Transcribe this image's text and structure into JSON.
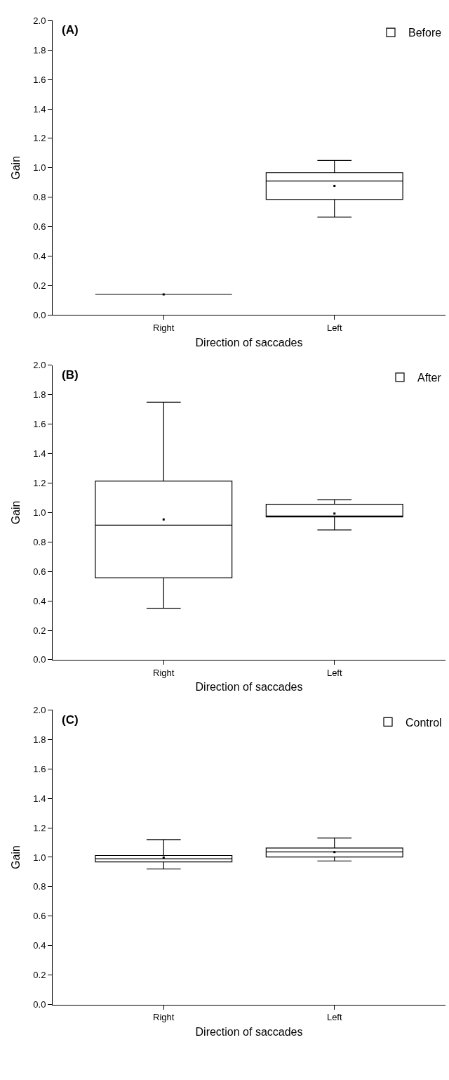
{
  "chart_data": [
    {
      "type": "box",
      "title": "(A)",
      "xlabel": "Direction of saccades",
      "ylabel": "Gain",
      "categories": [
        "Right",
        "Left"
      ],
      "ylim": [
        0,
        2
      ],
      "yticks": [
        {
          "value": 0,
          "label": "0.0"
        },
        0.2,
        0.4,
        0.6,
        0.8,
        {
          "value": 1,
          "label": "1.0"
        },
        1.2,
        1.4,
        1.6,
        1.8,
        {
          "value": 2,
          "label": "2.0"
        }
      ],
      "legend": "top right",
      "series": [
        {
          "name": "Before",
          "color": "#000000",
          "boxes": [
            {
              "low": 0.14,
              "q1": 0.14,
              "median": 0.14,
              "q3": 0.14,
              "high": 0.14,
              "mean": 0.14
            },
            {
              "low": 0.665,
              "q1": 0.785,
              "median": 0.91,
              "q3": 0.967,
              "high": 1.05,
              "mean": 0.877
            }
          ]
        }
      ]
    },
    {
      "type": "box",
      "title": "(B)",
      "xlabel": "Direction of saccades",
      "ylabel": "Gain",
      "categories": [
        "Right",
        "Left"
      ],
      "ylim": [
        0,
        2
      ],
      "yticks": [
        {
          "value": 0,
          "label": "0.0"
        },
        0.2,
        0.4,
        0.6,
        0.8,
        {
          "value": 1,
          "label": "1.0"
        },
        1.2,
        1.4,
        1.6,
        1.8,
        {
          "value": 2,
          "label": "2.0"
        }
      ],
      "legend": "top right",
      "series": [
        {
          "name": "After",
          "color": "#000000",
          "boxes": [
            {
              "low": 0.35,
              "q1": 0.556,
              "median": 0.914,
              "q3": 1.214,
              "high": 1.75,
              "mean": 0.953
            },
            {
              "low": 0.882,
              "q1": 0.97,
              "median": 0.976,
              "q3": 1.056,
              "high": 1.087,
              "mean": 0.993
            }
          ]
        }
      ]
    },
    {
      "type": "box",
      "title": "(C)",
      "xlabel": "Direction of saccades",
      "ylabel": "Gain",
      "categories": [
        "Right",
        "Left"
      ],
      "ylim": [
        0,
        2
      ],
      "yticks": [
        {
          "value": 0,
          "label": "0.0"
        },
        0.2,
        0.4,
        0.6,
        0.8,
        {
          "value": 1,
          "label": "1.0"
        },
        1.2,
        1.4,
        1.6,
        1.8,
        {
          "value": 2,
          "label": "2.0"
        }
      ],
      "legend": "top right",
      "series": [
        {
          "name": "Control",
          "color": "#000000",
          "boxes": [
            {
              "low": 0.92,
              "q1": 0.968,
              "median": 0.99,
              "q3": 1.012,
              "high": 1.12,
              "mean": 0.998
            },
            {
              "low": 0.975,
              "q1": 1.002,
              "median": 1.036,
              "q3": 1.063,
              "high": 1.131,
              "mean": 1.035
            }
          ]
        }
      ]
    }
  ]
}
